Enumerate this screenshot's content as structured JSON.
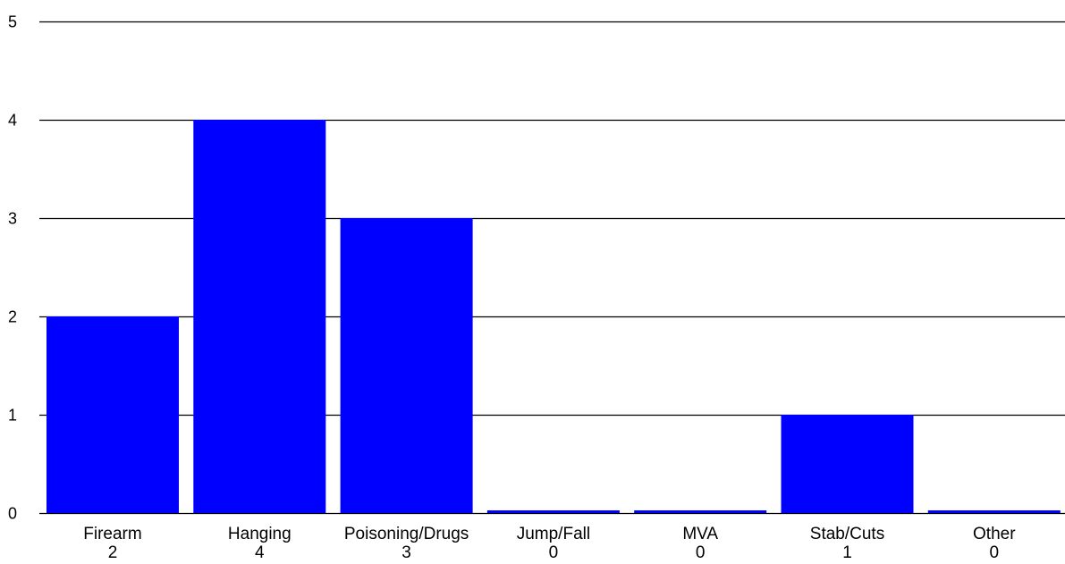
{
  "chart_data": {
    "type": "bar",
    "title": "",
    "xlabel": "",
    "ylabel": "",
    "categories": [
      "Firearm",
      "Hanging",
      "Poisoning/Drugs",
      "Jump/Fall",
      "MVA",
      "Stab/Cuts",
      "Other"
    ],
    "values": [
      2,
      4,
      3,
      0,
      0,
      1,
      0
    ],
    "value_labels": [
      "2",
      "4",
      "3",
      "0",
      "0",
      "1",
      "0"
    ],
    "ylim": [
      0,
      5
    ],
    "yticks": [
      0,
      1,
      2,
      3,
      4,
      5
    ],
    "ytick_labels": [
      "0",
      "1",
      "2",
      "3",
      "4",
      "5"
    ],
    "grid": true,
    "colors": {
      "bar": "#0000ff",
      "grid": "#000000",
      "background": "#ffffff"
    }
  }
}
